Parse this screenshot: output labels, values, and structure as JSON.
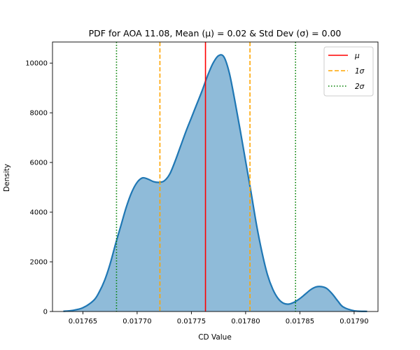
{
  "chart_data": {
    "type": "area",
    "title": "PDF for AOA 11.08, Mean (μ) = 0.02 & Std Dev (σ) = 0.00",
    "xlabel": "CD Value",
    "ylabel": "Density",
    "xlim": [
      0.017622,
      0.017922
    ],
    "ylim": [
      0,
      10850
    ],
    "x_ticks": [
      0.01765,
      0.0177,
      0.01775,
      0.0178,
      0.01785,
      0.0179
    ],
    "x_tick_labels": [
      "0.01765",
      "0.01770",
      "0.01775",
      "0.01780",
      "0.01785",
      "0.01790"
    ],
    "y_ticks": [
      0,
      2000,
      4000,
      6000,
      8000,
      10000
    ],
    "y_tick_labels": [
      "0",
      "2000",
      "4000",
      "6000",
      "8000",
      "10000"
    ],
    "grid": false,
    "legend_position": "top-right",
    "series": [
      {
        "type": "density",
        "color": "#1f77b4",
        "fill_color": "#1f77b4",
        "fill_opacity": 0.5,
        "x": [
          0.017632,
          0.01764,
          0.01765,
          0.01766,
          0.017665,
          0.01767,
          0.017675,
          0.01768,
          0.017685,
          0.01769,
          0.017695,
          0.0177,
          0.017705,
          0.01771,
          0.017715,
          0.01772,
          0.017725,
          0.01773,
          0.017735,
          0.01774,
          0.017745,
          0.01775,
          0.017755,
          0.01776,
          0.017765,
          0.01777,
          0.017775,
          0.01778,
          0.017785,
          0.01779,
          0.017795,
          0.0178,
          0.017805,
          0.01781,
          0.017815,
          0.01782,
          0.017825,
          0.01783,
          0.017835,
          0.01784,
          0.017845,
          0.01785,
          0.017855,
          0.01786,
          0.017865,
          0.01787,
          0.017875,
          0.01788,
          0.017885,
          0.01789,
          0.0179,
          0.017912
        ],
        "y": [
          10,
          40,
          150,
          450,
          780,
          1250,
          1900,
          2700,
          3450,
          4200,
          4800,
          5200,
          5380,
          5330,
          5230,
          5200,
          5260,
          5530,
          6050,
          6650,
          7250,
          7800,
          8350,
          8900,
          9500,
          10000,
          10300,
          10250,
          9600,
          8500,
          7300,
          6050,
          4800,
          3500,
          2400,
          1500,
          900,
          520,
          330,
          300,
          380,
          520,
          700,
          880,
          990,
          1000,
          920,
          700,
          420,
          180,
          30,
          5
        ]
      }
    ],
    "vlines": [
      {
        "name": "μ",
        "x": 0.017763,
        "color": "#ff0000",
        "style": "solid"
      },
      {
        "name": "1σ",
        "x": 0.017721,
        "color": "#ffa500",
        "style": "dashed"
      },
      {
        "name": "1σ",
        "x": 0.017804,
        "color": "#ffa500",
        "style": "dashed"
      },
      {
        "name": "2σ",
        "x": 0.017681,
        "color": "#008000",
        "style": "dotted"
      },
      {
        "name": "2σ",
        "x": 0.017846,
        "color": "#008000",
        "style": "dotted"
      }
    ],
    "legend": [
      {
        "label": "μ",
        "color": "#ff0000",
        "style": "solid"
      },
      {
        "label": "1σ",
        "color": "#ffa500",
        "style": "dashed"
      },
      {
        "label": "2σ",
        "color": "#008000",
        "style": "dotted"
      }
    ]
  }
}
